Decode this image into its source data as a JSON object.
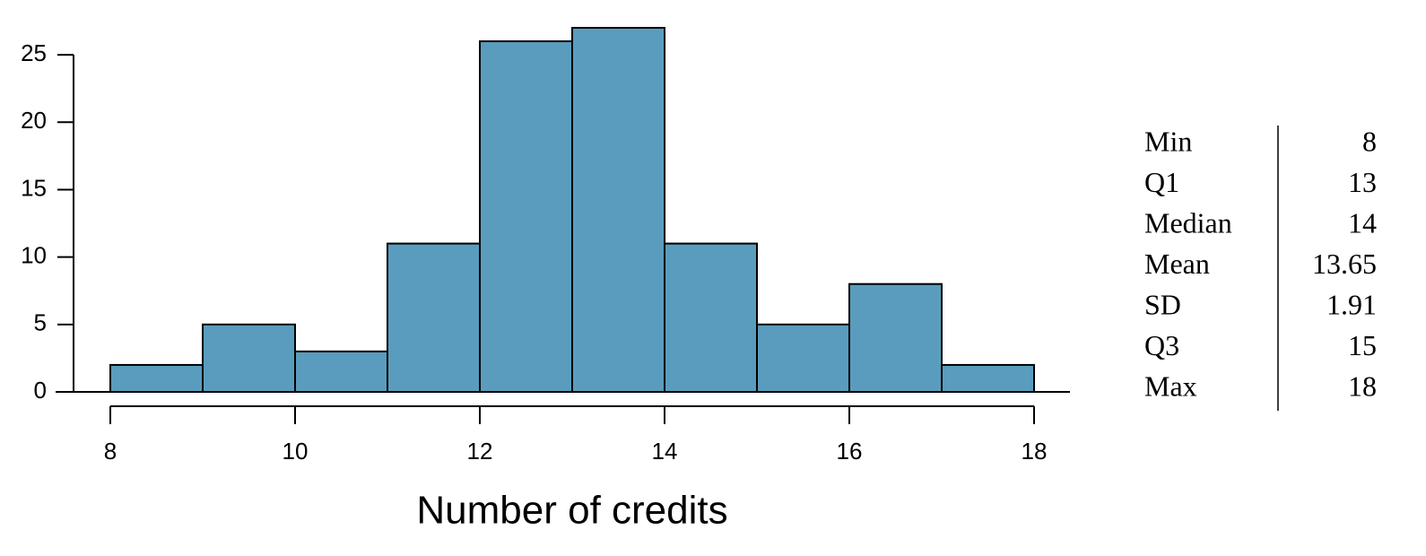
{
  "chart_data": {
    "type": "histogram",
    "x_label": "Number of credits",
    "bins": [
      8,
      9,
      10,
      11,
      12,
      13,
      14,
      15,
      16,
      17,
      18
    ],
    "values": [
      2,
      5,
      3,
      11,
      26,
      27,
      11,
      5,
      8,
      2
    ],
    "color": "#5a9cbd",
    "xlim": [
      8,
      18
    ],
    "xticks": [
      8,
      10,
      12,
      14,
      16,
      18
    ],
    "ylim": [
      0,
      27
    ],
    "yticks": [
      0,
      5,
      10,
      15,
      20,
      25
    ]
  },
  "summary": {
    "rows": [
      [
        "Min",
        8
      ],
      [
        "Q1",
        13
      ],
      [
        "Median",
        14
      ],
      [
        "Mean",
        13.65
      ],
      [
        "SD",
        1.91
      ],
      [
        "Q3",
        15
      ],
      [
        "Max",
        18
      ]
    ]
  }
}
